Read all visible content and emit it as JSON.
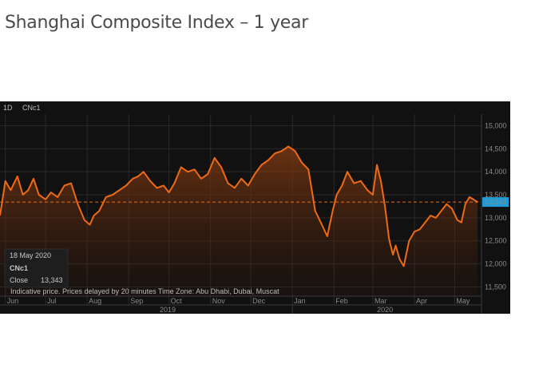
{
  "page_title": "Shanghai Composite Index –  1 year",
  "toolbar": {
    "interval": "1D",
    "symbol": "CNc1"
  },
  "tooltip": {
    "date": "18 May 2020",
    "symbol": "CNc1",
    "close_label": "Close",
    "close_value": "13,343"
  },
  "footer_note": "Indicative price. Prices delayed by 20 minutes    Time Zone: Abu Dhabi, Dubai, Muscat",
  "colors": {
    "line": "#ee6a14",
    "background": "#111111",
    "grid": "#2a2a2a",
    "last_price_label": "#1f9bd7"
  },
  "chart_data": {
    "type": "area",
    "title": "Shanghai Composite Index –  1 year",
    "y_axis": {
      "ticks": [
        11500,
        12000,
        12500,
        13000,
        13500,
        14000,
        14500,
        15000
      ],
      "tick_labels": [
        "11,500",
        "12,000",
        "12,500",
        "13,000",
        "13,500",
        "14,000",
        "14,500",
        "15,000"
      ],
      "ylim": [
        11300,
        15250
      ],
      "position": "right"
    },
    "x_axis": {
      "months": [
        "Jun",
        "Jul",
        "Aug",
        "Sep",
        "Oct",
        "Nov",
        "Dec",
        "Jan",
        "Feb",
        "Mar",
        "Apr",
        "May"
      ],
      "years": [
        "2019",
        "2020"
      ]
    },
    "last_price": 13343,
    "last_price_label": "13,343",
    "grid": true,
    "series": [
      {
        "x": [
          "2019-05-28",
          "2019-06-01",
          "2019-06-05",
          "2019-06-10",
          "2019-06-14",
          "2019-06-18",
          "2019-06-22",
          "2019-06-26",
          "2019-07-01",
          "2019-07-05",
          "2019-07-10",
          "2019-07-15",
          "2019-07-20",
          "2019-07-25",
          "2019-07-30",
          "2019-08-03",
          "2019-08-06",
          "2019-08-10",
          "2019-08-15",
          "2019-08-20",
          "2019-08-25",
          "2019-08-30",
          "2019-09-04",
          "2019-09-08",
          "2019-09-12",
          "2019-09-17",
          "2019-09-22",
          "2019-09-27",
          "2019-10-01",
          "2019-10-05",
          "2019-10-10",
          "2019-10-15",
          "2019-10-20",
          "2019-10-25",
          "2019-10-30",
          "2019-11-04",
          "2019-11-09",
          "2019-11-14",
          "2019-11-19",
          "2019-11-24",
          "2019-11-29",
          "2019-12-04",
          "2019-12-09",
          "2019-12-14",
          "2019-12-19",
          "2019-12-24",
          "2019-12-29",
          "2020-01-03",
          "2020-01-08",
          "2020-01-13",
          "2020-01-18",
          "2020-01-23",
          "2020-01-27",
          "2020-01-31",
          "2020-02-03",
          "2020-02-07",
          "2020-02-11",
          "2020-02-16",
          "2020-02-21",
          "2020-02-26",
          "2020-03-01",
          "2020-03-04",
          "2020-03-07",
          "2020-03-10",
          "2020-03-13",
          "2020-03-16",
          "2020-03-18",
          "2020-03-21",
          "2020-03-24",
          "2020-03-28",
          "2020-04-01",
          "2020-04-05",
          "2020-04-09",
          "2020-04-13",
          "2020-04-17",
          "2020-04-21",
          "2020-04-25",
          "2020-04-29",
          "2020-05-03",
          "2020-05-06",
          "2020-05-09",
          "2020-05-12",
          "2020-05-15",
          "2020-05-18"
        ],
        "values": [
          13050,
          13800,
          13600,
          13900,
          13500,
          13600,
          13850,
          13500,
          13400,
          13550,
          13450,
          13700,
          13750,
          13300,
          12950,
          12850,
          13050,
          13150,
          13450,
          13500,
          13600,
          13700,
          13850,
          13900,
          14000,
          13800,
          13650,
          13700,
          13550,
          13750,
          14100,
          14000,
          14050,
          13850,
          13950,
          14300,
          14100,
          13750,
          13650,
          13850,
          13700,
          13950,
          14150,
          14250,
          14400,
          14450,
          14550,
          14450,
          14200,
          14050,
          13150,
          12850,
          12600,
          13150,
          13500,
          13700,
          14000,
          13750,
          13800,
          13600,
          13500,
          14150,
          13800,
          13250,
          12550,
          12200,
          12400,
          12100,
          11950,
          12500,
          12700,
          12750,
          12900,
          13050,
          13000,
          13150,
          13300,
          13200,
          12950,
          12900,
          13300,
          13450,
          13400,
          13343
        ]
      }
    ]
  }
}
